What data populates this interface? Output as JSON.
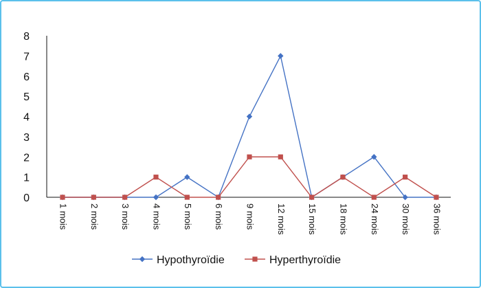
{
  "chart_data": {
    "type": "line",
    "title": "",
    "xlabel": "",
    "ylabel": "",
    "categories": [
      "1 mois",
      "2 mois",
      "3 mois",
      "4 mois",
      "5 mois",
      "6 mois",
      "9 mois",
      "12 mois",
      "15 mois",
      "18 mois",
      "24 mois",
      "30 mois",
      "36 mois"
    ],
    "ylim": [
      0,
      8
    ],
    "yticks": [
      0,
      1,
      2,
      3,
      4,
      5,
      6,
      7,
      8
    ],
    "grid": false,
    "legend": "bottom",
    "series": [
      {
        "name": "Hypothyroïdie",
        "values": [
          0,
          0,
          0,
          0,
          1,
          0,
          4,
          7,
          0,
          1,
          2,
          0,
          0
        ],
        "color": "#4472c4",
        "marker": "diamond"
      },
      {
        "name": "Hyperthyroïdie",
        "values": [
          0,
          0,
          0,
          1,
          0,
          0,
          2,
          2,
          0,
          1,
          0,
          1,
          0
        ],
        "color": "#c0504d",
        "marker": "square"
      }
    ]
  }
}
